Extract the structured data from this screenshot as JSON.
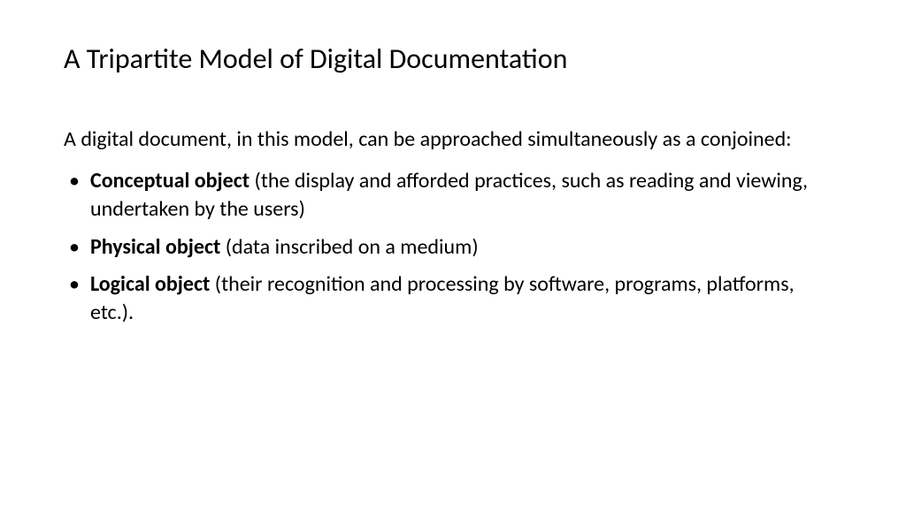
{
  "slide": {
    "title": "A Tripartite Model of Digital Documentation",
    "intro": "A digital document, in this model, can be approached simultaneously as a conjoined:",
    "bullets": [
      {
        "strong": "Conceptual object",
        "rest": " (the display and afforded practices, such as reading and viewing, undertaken by the users)"
      },
      {
        "strong": "Physical object",
        "rest": " (data inscribed on a medium)"
      },
      {
        "strong": "Logical object",
        "rest": " (their recognition and processing by software, programs, platforms, etc.)."
      }
    ],
    "styling": {
      "title_fontsize": 32,
      "body_fontsize": 24,
      "title_weight": 400,
      "bold_weight": 700,
      "text_color": "#000000",
      "background_color": "#ffffff",
      "font_family": "Calibri"
    }
  }
}
